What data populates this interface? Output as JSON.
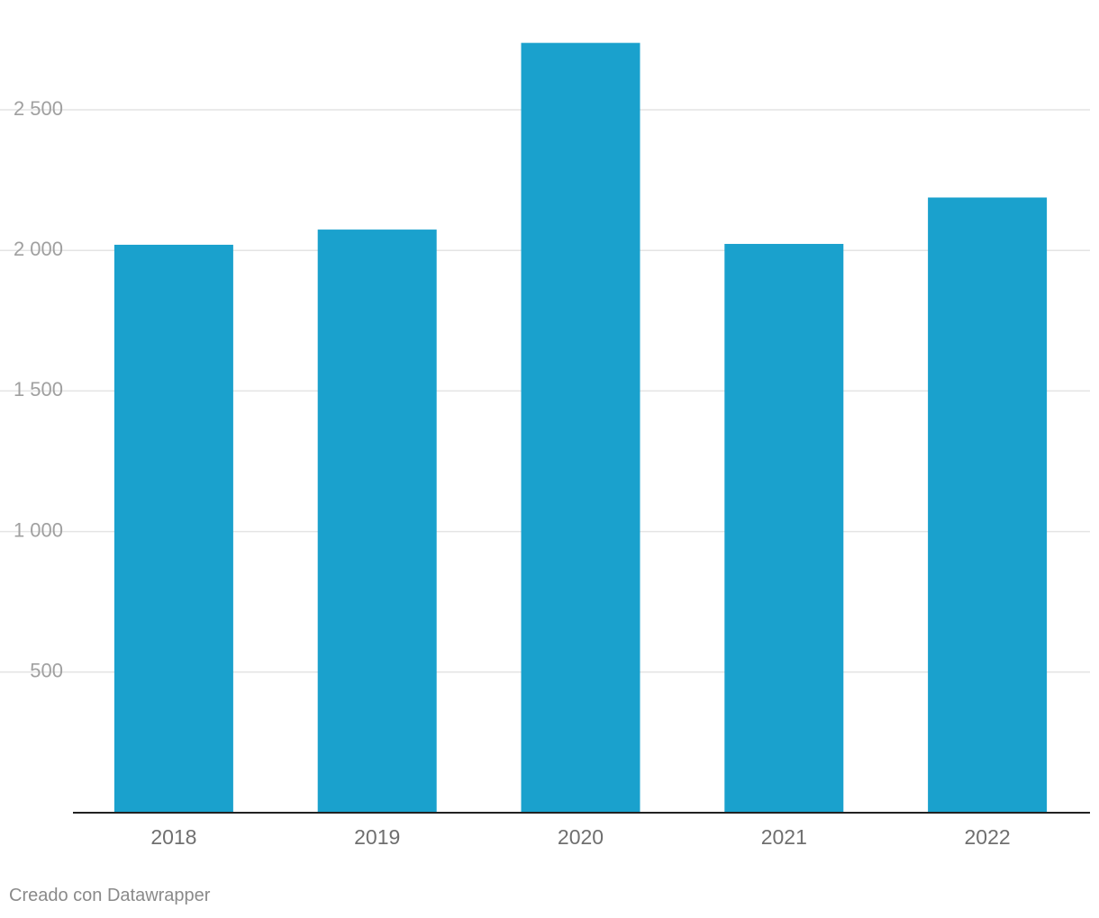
{
  "chart_data": {
    "type": "bar",
    "categories": [
      "2018",
      "2019",
      "2020",
      "2021",
      "2022"
    ],
    "values": [
      2020,
      2074,
      2738,
      2023,
      2188
    ],
    "yticks": [
      500,
      1000,
      1500,
      2000,
      2500
    ],
    "ytick_labels": [
      "500",
      "1 000",
      "1 500",
      "2 000",
      "2 500"
    ],
    "ylim": [
      0,
      2750
    ],
    "grid": true,
    "bar_color": "#1aa1cd",
    "title": "",
    "xlabel": "",
    "ylabel": ""
  },
  "footer": {
    "credit": "Creado con Datawrapper"
  }
}
